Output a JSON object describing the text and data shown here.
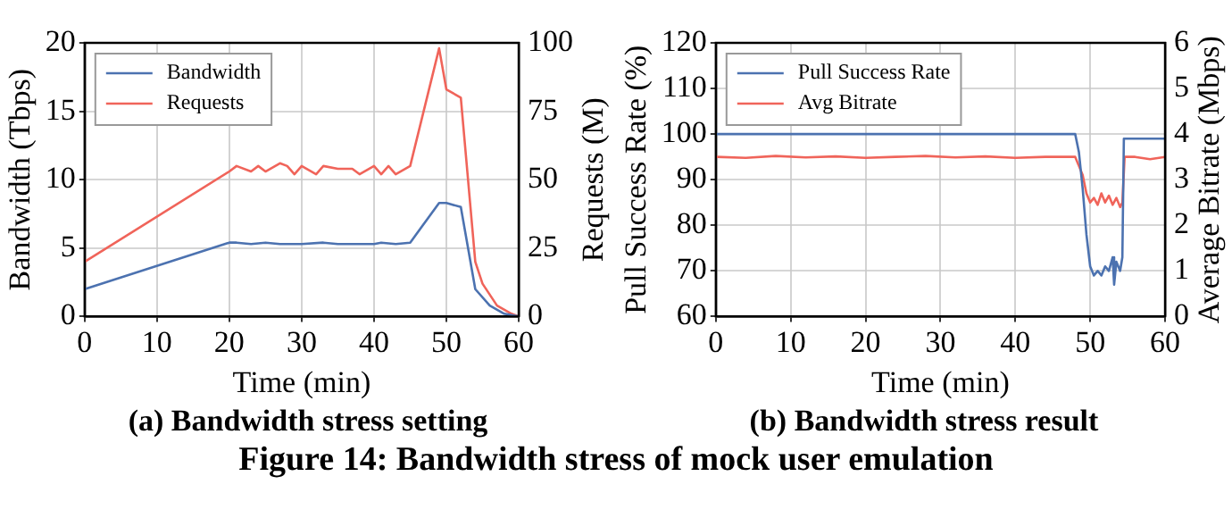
{
  "chart_data": [
    {
      "type": "line",
      "xlabel": "Time (min)",
      "ylabel": "Bandwidth (Tbps)",
      "y2label": "Requests (M)",
      "xlim": [
        0,
        60
      ],
      "xticks": [
        0,
        10,
        20,
        30,
        40,
        50,
        60
      ],
      "ylim": [
        0,
        20
      ],
      "yticks": [
        0,
        5,
        10,
        15,
        20
      ],
      "y2lim": [
        0,
        100
      ],
      "y2ticks": [
        0,
        25,
        50,
        75,
        100
      ],
      "grid": true,
      "legend": "top left",
      "annotations": [
        "(a) Bandwidth stress setting",
        "Figure 14: Bandwidth stress of mock user emulation"
      ],
      "series": [
        {
          "name": "Bandwidth",
          "color": "#4c72b0",
          "x": [
            0,
            20,
            21,
            23,
            25,
            27,
            30,
            33,
            35,
            40,
            41,
            43,
            45,
            49,
            50,
            52,
            53,
            54,
            56,
            58,
            60
          ],
          "values": [
            2,
            5.4,
            5.4,
            5.3,
            5.4,
            5.3,
            5.3,
            5.4,
            5.3,
            5.3,
            5.4,
            5.3,
            5.4,
            8.3,
            8.3,
            8,
            5,
            2,
            0.8,
            0.2,
            0
          ]
        },
        {
          "name": "Requests",
          "color": "#f0645a",
          "axis": "y2",
          "x": [
            0,
            20,
            21,
            23,
            24,
            25,
            27,
            28,
            29,
            30,
            32,
            33,
            35,
            37,
            38,
            40,
            41,
            42,
            43,
            45,
            49,
            50,
            52,
            54,
            55,
            57,
            59,
            60
          ],
          "values": [
            20,
            53,
            55,
            53,
            55,
            53,
            56,
            55,
            52,
            55,
            52,
            55,
            54,
            54,
            52,
            55,
            52,
            55,
            52,
            55,
            98,
            83,
            80,
            20,
            12,
            4,
            1,
            0
          ]
        }
      ]
    },
    {
      "type": "line",
      "xlabel": "Time (min)",
      "ylabel": "Pull Success Rate (%)",
      "y2label": "Average Bitrate (Mbps)",
      "xlim": [
        0,
        60
      ],
      "xticks": [
        0,
        10,
        20,
        30,
        40,
        50,
        60
      ],
      "ylim": [
        60,
        120
      ],
      "yticks": [
        60,
        70,
        80,
        90,
        100,
        110,
        120
      ],
      "y2lim": [
        0,
        6
      ],
      "y2ticks": [
        0,
        1,
        2,
        3,
        4,
        5,
        6
      ],
      "grid": true,
      "legend": "top left",
      "annotations": [
        "(b) Bandwidth stress result"
      ],
      "series": [
        {
          "name": "Pull Success Rate",
          "color": "#4c72b0",
          "x": [
            0,
            48,
            48.5,
            49,
            49.5,
            50,
            50.5,
            51,
            51.5,
            52,
            52.5,
            53,
            53.2,
            53.5,
            54,
            54.3,
            54.5,
            60
          ],
          "values": [
            100,
            100,
            96,
            88,
            78,
            71,
            69,
            70,
            69,
            71,
            70,
            73,
            67,
            72,
            70,
            73,
            99,
            99
          ]
        },
        {
          "name": "Avg Bitrate",
          "color": "#f0645a",
          "axis": "y2",
          "x": [
            0,
            4,
            8,
            12,
            16,
            20,
            24,
            28,
            32,
            36,
            40,
            44,
            48,
            48.5,
            49,
            49.5,
            50,
            50.5,
            51,
            51.5,
            52,
            52.5,
            53,
            53.5,
            54,
            54.3,
            54.6,
            56,
            58,
            60
          ],
          "values": [
            3.5,
            3.48,
            3.52,
            3.49,
            3.51,
            3.48,
            3.5,
            3.52,
            3.49,
            3.51,
            3.48,
            3.5,
            3.5,
            3.3,
            3.1,
            2.7,
            2.5,
            2.6,
            2.45,
            2.7,
            2.5,
            2.65,
            2.45,
            2.6,
            2.4,
            2.5,
            3.5,
            3.5,
            3.45,
            3.5
          ]
        }
      ]
    }
  ]
}
